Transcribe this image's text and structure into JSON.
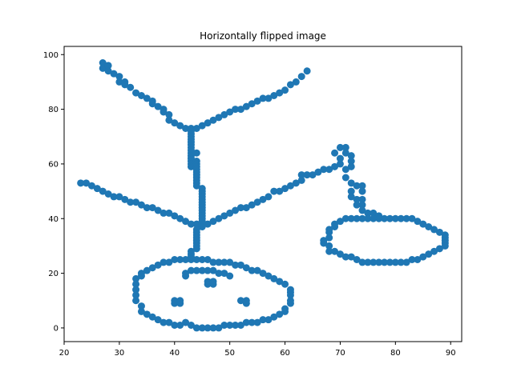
{
  "chart_data": {
    "type": "scatter",
    "title": "Horizontally flipped image",
    "xlabel": "",
    "ylabel": "",
    "xlim": [
      20,
      92
    ],
    "ylim": [
      -5,
      103
    ],
    "xticks": [
      20,
      30,
      40,
      50,
      60,
      70,
      80,
      90
    ],
    "yticks": [
      0,
      20,
      40,
      60,
      80,
      100
    ],
    "grid": false,
    "marker_color": "#1f77b4",
    "series": [
      {
        "points": [
          [
            27,
            97
          ],
          [
            27,
            95
          ],
          [
            28,
            96
          ],
          [
            28,
            94
          ],
          [
            29,
            93
          ],
          [
            30,
            92
          ],
          [
            30,
            90
          ],
          [
            31,
            90
          ],
          [
            31,
            89
          ],
          [
            32,
            88
          ],
          [
            33,
            86
          ],
          [
            34,
            85
          ],
          [
            35,
            84
          ],
          [
            36,
            83
          ],
          [
            36,
            82
          ],
          [
            37,
            81
          ],
          [
            38,
            80
          ],
          [
            38,
            79
          ],
          [
            39,
            78
          ],
          [
            39,
            76
          ],
          [
            40,
            75
          ],
          [
            41,
            74
          ],
          [
            42,
            73
          ],
          [
            43,
            73
          ],
          [
            43,
            72
          ],
          [
            44,
            73
          ],
          [
            45,
            74
          ],
          [
            46,
            75
          ],
          [
            47,
            76
          ],
          [
            48,
            77
          ],
          [
            49,
            78
          ],
          [
            50,
            79
          ],
          [
            51,
            80
          ],
          [
            52,
            80
          ],
          [
            53,
            81
          ],
          [
            54,
            82
          ],
          [
            55,
            83
          ],
          [
            56,
            84
          ],
          [
            57,
            84
          ],
          [
            58,
            85
          ],
          [
            59,
            86
          ],
          [
            60,
            87
          ],
          [
            61,
            89
          ],
          [
            62,
            90
          ],
          [
            63,
            92
          ],
          [
            64,
            94
          ],
          [
            43,
            71
          ],
          [
            43,
            70
          ],
          [
            43,
            69
          ],
          [
            43,
            68
          ],
          [
            43,
            67
          ],
          [
            43,
            66
          ],
          [
            43,
            65
          ],
          [
            43,
            64
          ],
          [
            43,
            63
          ],
          [
            43,
            62
          ],
          [
            43,
            61
          ],
          [
            43,
            60
          ],
          [
            43,
            59
          ],
          [
            44,
            64
          ],
          [
            44,
            61
          ],
          [
            44,
            60
          ],
          [
            44,
            59
          ],
          [
            44,
            58
          ],
          [
            44,
            57
          ],
          [
            44,
            56
          ],
          [
            44,
            55
          ],
          [
            44,
            54
          ],
          [
            44,
            53
          ],
          [
            44,
            52
          ],
          [
            45,
            51
          ],
          [
            45,
            50
          ],
          [
            45,
            49
          ],
          [
            45,
            48
          ],
          [
            45,
            47
          ],
          [
            45,
            46
          ],
          [
            45,
            45
          ],
          [
            45,
            44
          ],
          [
            45,
            43
          ],
          [
            45,
            42
          ],
          [
            45,
            41
          ],
          [
            45,
            40
          ],
          [
            45,
            39
          ],
          [
            45,
            38
          ],
          [
            45,
            37
          ],
          [
            44,
            36
          ],
          [
            44,
            35
          ],
          [
            44,
            34
          ],
          [
            44,
            33
          ],
          [
            44,
            32
          ],
          [
            44,
            31
          ],
          [
            44,
            30
          ],
          [
            44,
            29
          ],
          [
            43,
            28
          ],
          [
            43,
            27
          ],
          [
            43,
            26
          ],
          [
            23,
            53
          ],
          [
            24,
            53
          ],
          [
            25,
            52
          ],
          [
            26,
            51
          ],
          [
            27,
            50
          ],
          [
            28,
            49
          ],
          [
            29,
            48
          ],
          [
            30,
            48
          ],
          [
            31,
            47
          ],
          [
            32,
            46
          ],
          [
            33,
            46
          ],
          [
            34,
            45
          ],
          [
            35,
            44
          ],
          [
            36,
            44
          ],
          [
            37,
            43
          ],
          [
            38,
            42
          ],
          [
            39,
            42
          ],
          [
            40,
            41
          ],
          [
            41,
            40
          ],
          [
            42,
            39
          ],
          [
            43,
            38
          ],
          [
            44,
            38
          ],
          [
            46,
            38
          ],
          [
            47,
            39
          ],
          [
            48,
            40
          ],
          [
            49,
            41
          ],
          [
            50,
            42
          ],
          [
            51,
            43
          ],
          [
            52,
            44
          ],
          [
            53,
            44
          ],
          [
            54,
            45
          ],
          [
            55,
            46
          ],
          [
            56,
            47
          ],
          [
            57,
            48
          ],
          [
            58,
            50
          ],
          [
            59,
            50
          ],
          [
            60,
            51
          ],
          [
            61,
            52
          ],
          [
            62,
            53
          ],
          [
            63,
            54
          ],
          [
            63,
            56
          ],
          [
            64,
            56
          ],
          [
            65,
            56
          ],
          [
            66,
            57
          ],
          [
            67,
            58
          ],
          [
            68,
            58
          ],
          [
            69,
            59
          ],
          [
            70,
            60
          ],
          [
            70,
            62
          ],
          [
            69,
            64
          ],
          [
            70,
            66
          ],
          [
            71,
            66
          ],
          [
            71,
            64
          ],
          [
            72,
            63
          ],
          [
            72,
            61
          ],
          [
            72,
            59
          ],
          [
            71,
            58
          ],
          [
            71,
            55
          ],
          [
            72,
            53
          ],
          [
            73,
            52
          ],
          [
            74,
            52
          ],
          [
            74,
            50
          ],
          [
            72,
            50
          ],
          [
            72,
            48
          ],
          [
            73,
            47
          ],
          [
            74,
            47
          ],
          [
            74,
            45
          ],
          [
            73,
            45
          ],
          [
            74,
            43
          ],
          [
            75,
            42
          ],
          [
            76,
            42
          ],
          [
            77,
            41
          ],
          [
            77,
            40
          ],
          [
            71,
            40
          ],
          [
            72,
            40
          ],
          [
            73,
            40
          ],
          [
            74,
            40
          ],
          [
            75,
            40
          ],
          [
            76,
            40
          ],
          [
            78,
            40
          ],
          [
            79,
            40
          ],
          [
            80,
            40
          ],
          [
            81,
            40
          ],
          [
            82,
            40
          ],
          [
            83,
            40
          ],
          [
            84,
            39
          ],
          [
            85,
            38
          ],
          [
            86,
            37
          ],
          [
            87,
            36
          ],
          [
            88,
            35
          ],
          [
            89,
            34
          ],
          [
            89,
            33
          ],
          [
            89,
            32
          ],
          [
            89,
            31
          ],
          [
            89,
            30
          ],
          [
            88,
            29
          ],
          [
            87,
            28
          ],
          [
            86,
            27
          ],
          [
            85,
            26
          ],
          [
            84,
            25
          ],
          [
            83,
            25
          ],
          [
            82,
            24
          ],
          [
            81,
            24
          ],
          [
            80,
            24
          ],
          [
            79,
            24
          ],
          [
            78,
            24
          ],
          [
            77,
            24
          ],
          [
            76,
            24
          ],
          [
            75,
            24
          ],
          [
            74,
            24
          ],
          [
            73,
            25
          ],
          [
            72,
            26
          ],
          [
            71,
            26
          ],
          [
            70,
            27
          ],
          [
            69,
            28
          ],
          [
            68,
            28
          ],
          [
            68,
            30
          ],
          [
            67,
            31
          ],
          [
            67,
            32
          ],
          [
            68,
            33
          ],
          [
            68,
            35
          ],
          [
            68,
            36
          ],
          [
            69,
            37
          ],
          [
            69,
            38
          ],
          [
            70,
            39
          ],
          [
            42,
            25
          ],
          [
            43,
            25
          ],
          [
            44,
            25
          ],
          [
            45,
            25
          ],
          [
            46,
            25
          ],
          [
            47,
            24
          ],
          [
            48,
            24
          ],
          [
            49,
            24
          ],
          [
            50,
            24
          ],
          [
            51,
            23
          ],
          [
            52,
            23
          ],
          [
            53,
            22
          ],
          [
            54,
            21
          ],
          [
            55,
            21
          ],
          [
            56,
            20
          ],
          [
            57,
            19
          ],
          [
            58,
            18
          ],
          [
            59,
            17
          ],
          [
            60,
            16
          ],
          [
            61,
            14
          ],
          [
            61,
            13
          ],
          [
            61,
            12
          ],
          [
            61,
            10
          ],
          [
            61,
            9
          ],
          [
            60,
            7
          ],
          [
            60,
            6
          ],
          [
            59,
            5
          ],
          [
            58,
            4
          ],
          [
            57,
            3
          ],
          [
            56,
            3
          ],
          [
            55,
            2
          ],
          [
            54,
            2
          ],
          [
            53,
            2
          ],
          [
            52,
            1
          ],
          [
            51,
            1
          ],
          [
            50,
            1
          ],
          [
            49,
            1
          ],
          [
            48,
            0
          ],
          [
            47,
            0
          ],
          [
            46,
            0
          ],
          [
            45,
            0
          ],
          [
            44,
            0
          ],
          [
            43,
            1
          ],
          [
            42,
            2
          ],
          [
            41,
            1
          ],
          [
            40,
            1
          ],
          [
            39,
            2
          ],
          [
            38,
            2
          ],
          [
            37,
            3
          ],
          [
            36,
            4
          ],
          [
            35,
            5
          ],
          [
            34,
            6
          ],
          [
            34,
            8
          ],
          [
            33,
            10
          ],
          [
            33,
            12
          ],
          [
            33,
            14
          ],
          [
            33,
            16
          ],
          [
            33,
            18
          ],
          [
            34,
            19
          ],
          [
            34,
            20
          ],
          [
            35,
            21
          ],
          [
            36,
            22
          ],
          [
            37,
            23
          ],
          [
            38,
            24
          ],
          [
            39,
            24
          ],
          [
            40,
            25
          ],
          [
            41,
            25
          ],
          [
            42,
            19
          ],
          [
            42,
            20
          ],
          [
            43,
            21
          ],
          [
            44,
            21
          ],
          [
            45,
            21
          ],
          [
            46,
            21
          ],
          [
            47,
            21
          ],
          [
            48,
            20
          ],
          [
            49,
            20
          ],
          [
            50,
            19
          ],
          [
            46,
            17
          ],
          [
            46,
            16
          ],
          [
            47,
            16
          ],
          [
            47,
            17
          ],
          [
            40,
            9
          ],
          [
            40,
            10
          ],
          [
            41,
            9
          ],
          [
            41,
            10
          ],
          [
            52,
            10
          ],
          [
            53,
            9
          ],
          [
            53,
            10
          ]
        ]
      }
    ]
  }
}
